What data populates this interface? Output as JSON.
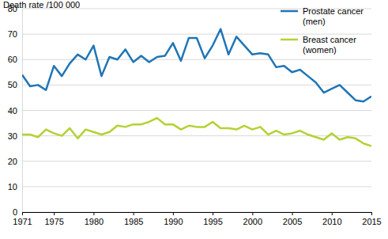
{
  "chart_data": {
    "type": "line",
    "y_label": "Death rate /100 000",
    "x": [
      1971,
      1972,
      1973,
      1974,
      1975,
      1976,
      1977,
      1978,
      1979,
      1980,
      1981,
      1982,
      1983,
      1984,
      1985,
      1986,
      1987,
      1988,
      1989,
      1990,
      1991,
      1992,
      1993,
      1994,
      1995,
      1996,
      1997,
      1998,
      1999,
      2000,
      2001,
      2002,
      2003,
      2004,
      2005,
      2006,
      2007,
      2008,
      2009,
      2010,
      2011,
      2012,
      2013,
      2014,
      2015
    ],
    "series": [
      {
        "name": "Prostate cancer (men)",
        "color": "#1f75b6",
        "values": [
          54,
          49.5,
          50,
          48,
          57.5,
          53.5,
          58.5,
          62,
          60,
          65.5,
          53.5,
          61,
          60,
          64,
          59,
          61.5,
          59,
          61,
          61.5,
          66.5,
          59.5,
          68.5,
          68.5,
          60.5,
          65.5,
          72,
          62,
          69,
          65.5,
          62,
          62.5,
          62,
          57,
          57.5,
          55,
          56,
          53.5,
          51,
          47,
          48.5,
          50,
          47,
          44,
          43.5,
          45.5
        ]
      },
      {
        "name": "Breast cancer (women)",
        "color": "#b3d235",
        "values": [
          30.5,
          30.5,
          29.5,
          32.5,
          31,
          30,
          33,
          29,
          32.5,
          31.5,
          30.5,
          31.5,
          34,
          33.5,
          34.5,
          34.5,
          35.5,
          37,
          34.5,
          34.5,
          32.5,
          34,
          33.5,
          33.5,
          35.5,
          33,
          33,
          32.5,
          34,
          32.5,
          33.5,
          30.5,
          32,
          30.5,
          31,
          32,
          30.5,
          29.5,
          28.5,
          31,
          28.5,
          29.5,
          29,
          27,
          26
        ]
      }
    ],
    "xlim": [
      1971,
      2015
    ],
    "xticks": [
      1971,
      1975,
      1980,
      1985,
      1990,
      1995,
      2000,
      2005,
      2010,
      2015
    ],
    "ylim": [
      0,
      80
    ],
    "yticks": [
      0,
      10,
      20,
      30,
      40,
      50,
      60,
      70,
      80
    ],
    "grid": true,
    "legend": "top-right"
  }
}
